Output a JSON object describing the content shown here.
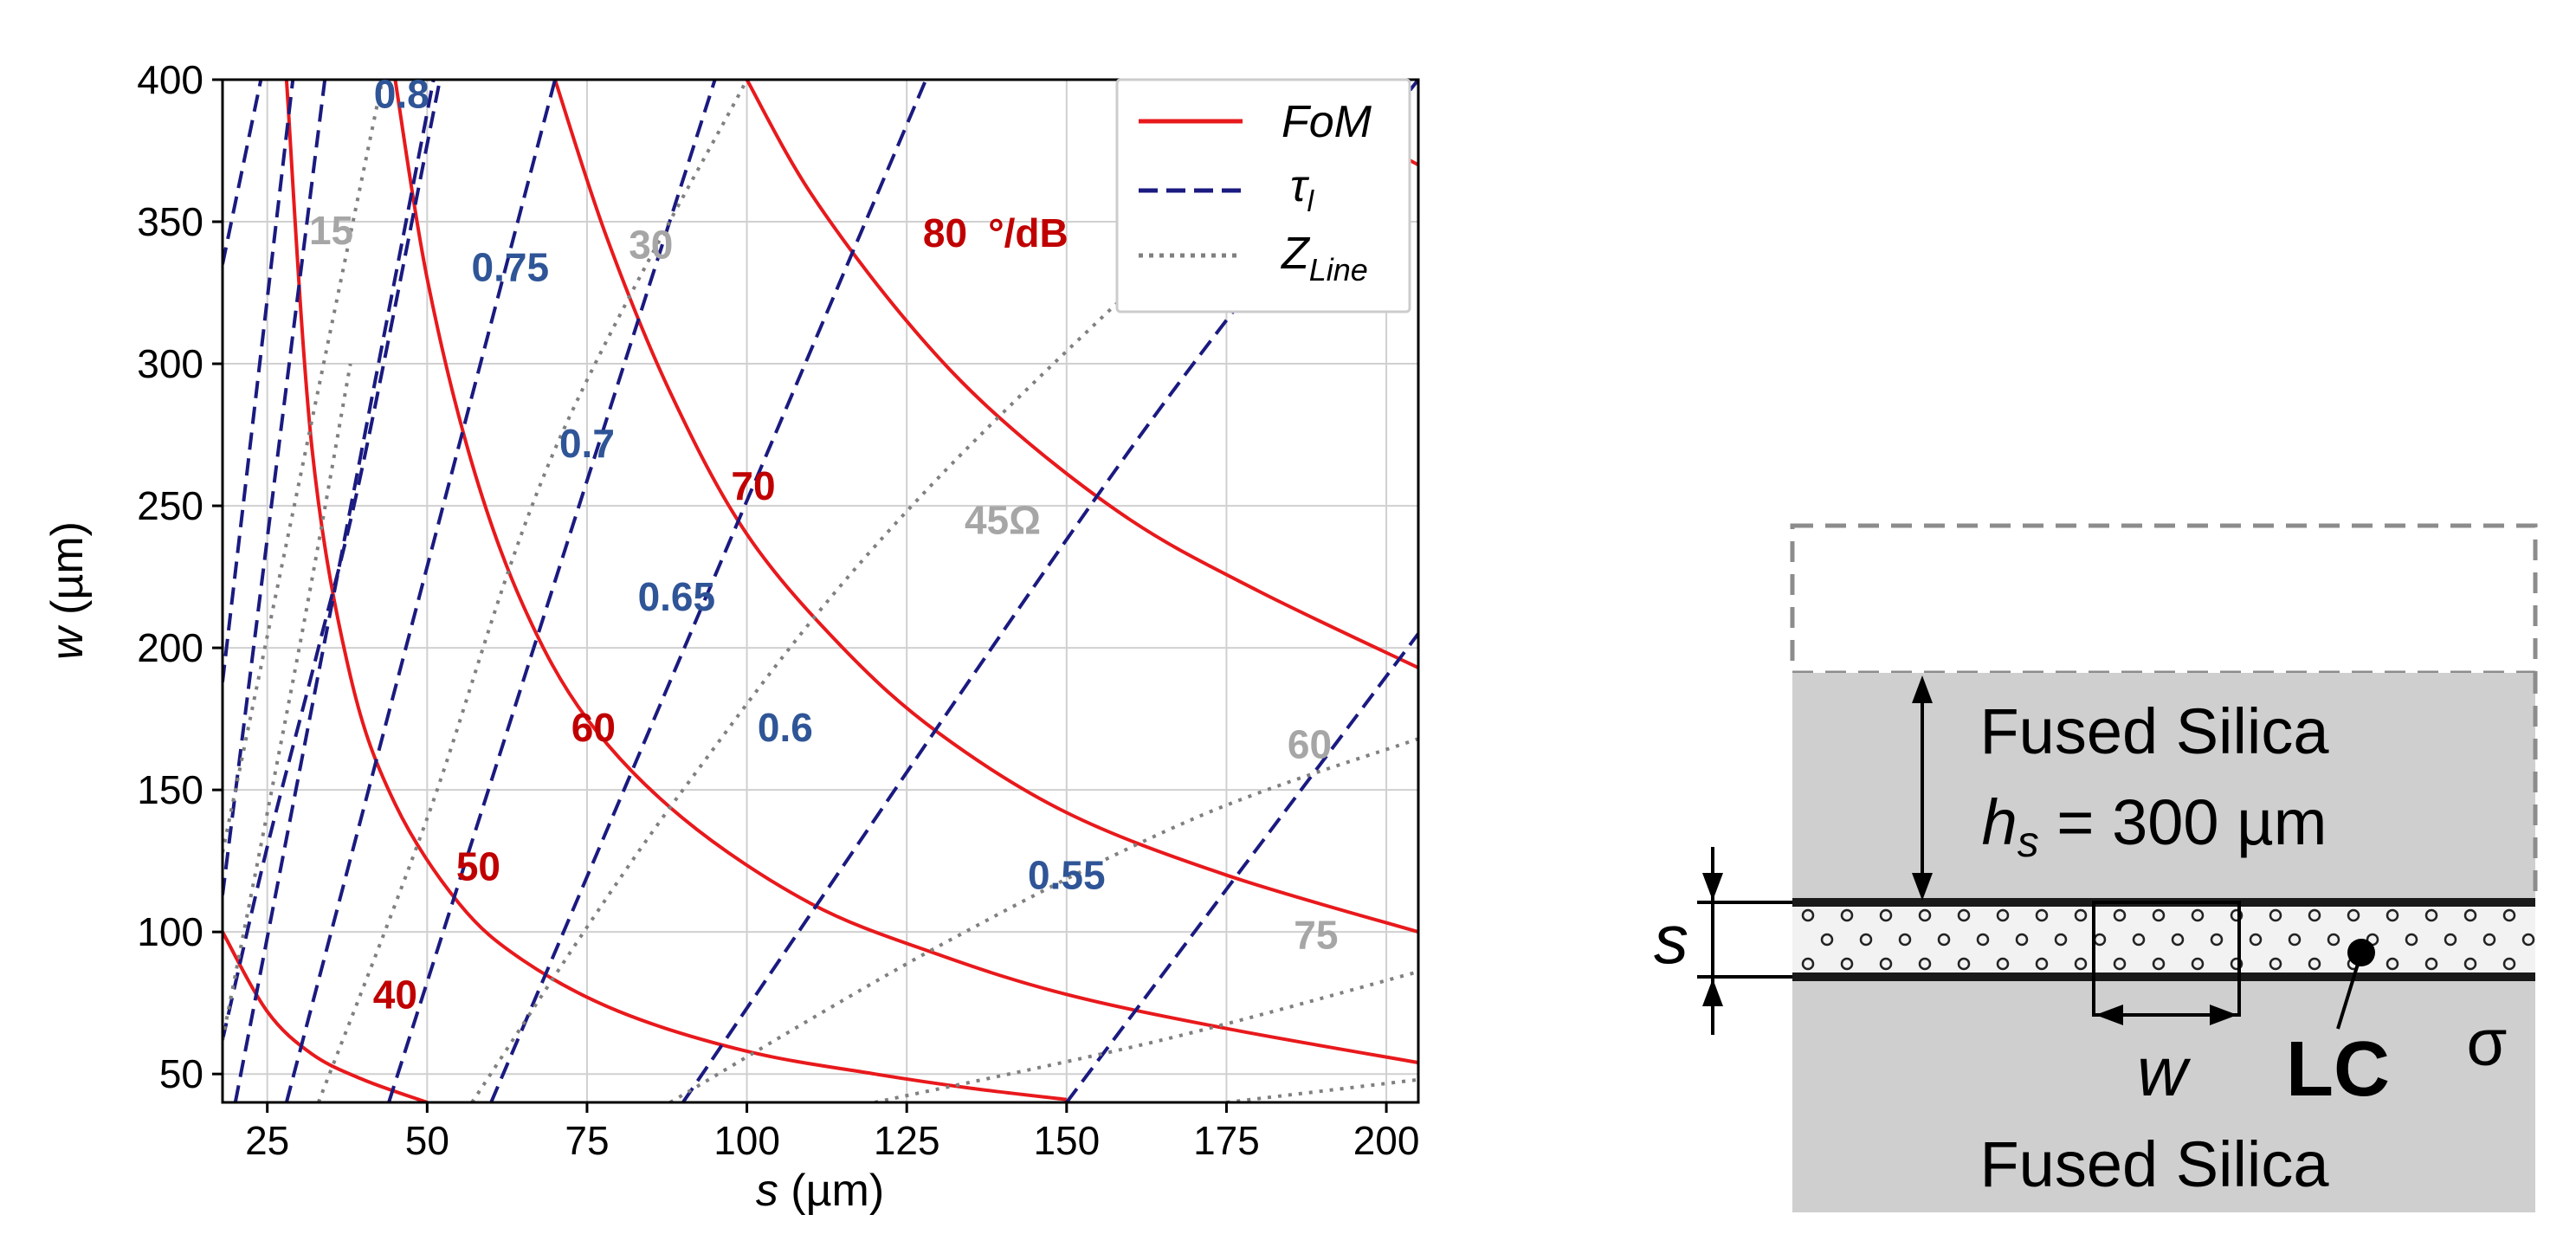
{
  "chart_data": {
    "type": "line",
    "xlabel_var": "s",
    "xlabel_unit": " (µm)",
    "ylabel_var": "w",
    "ylabel_unit": " (µm)",
    "xlim": [
      18,
      205
    ],
    "ylim": [
      40,
      400
    ],
    "xticks": [
      25,
      50,
      75,
      100,
      125,
      150,
      175,
      200
    ],
    "yticks": [
      50,
      100,
      150,
      200,
      250,
      300,
      350,
      400
    ],
    "grid": true,
    "legend_position": "top-right",
    "legend": [
      {
        "label": "FoM",
        "style": "solid",
        "color": "#e8191c"
      },
      {
        "label": "τ",
        "sub": "l",
        "style": "dashed",
        "color": "#1a1a80"
      },
      {
        "label": "Z",
        "sub": "Line",
        "style": "dotted",
        "color": "#808080"
      }
    ],
    "series": [
      {
        "group": "FoM",
        "value": 40,
        "points": [
          [
            18,
            100
          ],
          [
            25,
            72
          ],
          [
            32,
            57
          ],
          [
            40,
            48
          ],
          [
            50,
            40
          ]
        ]
      },
      {
        "group": "FoM",
        "value": 50,
        "points": [
          [
            28,
            400
          ],
          [
            32,
            270
          ],
          [
            38,
            190
          ],
          [
            45,
            145
          ],
          [
            55,
            110
          ],
          [
            65,
            90
          ],
          [
            80,
            72
          ],
          [
            100,
            58
          ],
          [
            120,
            50
          ],
          [
            135,
            45
          ],
          [
            150,
            41
          ]
        ]
      },
      {
        "group": "FoM",
        "value": 60,
        "points": [
          [
            45,
            400
          ],
          [
            50,
            330
          ],
          [
            57,
            265
          ],
          [
            65,
            215
          ],
          [
            75,
            175
          ],
          [
            90,
            140
          ],
          [
            110,
            110
          ],
          [
            130,
            92
          ],
          [
            150,
            78
          ],
          [
            175,
            66
          ],
          [
            205,
            54
          ]
        ]
      },
      {
        "group": "FoM",
        "value": 70,
        "points": [
          [
            70,
            400
          ],
          [
            78,
            345
          ],
          [
            88,
            290
          ],
          [
            100,
            240
          ],
          [
            115,
            200
          ],
          [
            130,
            170
          ],
          [
            150,
            142
          ],
          [
            175,
            120
          ],
          [
            205,
            100
          ]
        ]
      },
      {
        "group": "FoM",
        "value": 80,
        "points": [
          [
            100,
            400
          ],
          [
            110,
            360
          ],
          [
            125,
            315
          ],
          [
            140,
            280
          ],
          [
            160,
            245
          ],
          [
            180,
            220
          ],
          [
            205,
            193
          ]
        ]
      },
      {
        "group": "FoM",
        "value": null,
        "points": [
          [
            180,
            400
          ],
          [
            205,
            370
          ]
        ]
      },
      {
        "group": "tau",
        "value": 0.8,
        "points": [
          [
            18,
            335
          ],
          [
            24,
            400
          ]
        ]
      },
      {
        "group": "tau",
        "value": null,
        "points": [
          [
            18,
            188
          ],
          [
            29,
            400
          ]
        ]
      },
      {
        "group": "tau",
        "value": null,
        "points": [
          [
            18,
            113
          ],
          [
            34,
            400
          ]
        ]
      },
      {
        "group": "tau",
        "value": null,
        "points": [
          [
            18,
            62
          ],
          [
            25,
            130
          ],
          [
            33,
            200
          ],
          [
            40,
            265
          ],
          [
            52,
            400
          ]
        ]
      },
      {
        "group": "tau",
        "value": 0.75,
        "points": [
          [
            20,
            40
          ],
          [
            51,
            400
          ]
        ]
      },
      {
        "group": "tau",
        "value": 0.7,
        "points": [
          [
            28,
            40
          ],
          [
            70,
            400
          ]
        ]
      },
      {
        "group": "tau",
        "value": 0.65,
        "points": [
          [
            44,
            40
          ],
          [
            95,
            400
          ]
        ]
      },
      {
        "group": "tau",
        "value": 0.6,
        "points": [
          [
            60,
            40
          ],
          [
            128,
            400
          ]
        ]
      },
      {
        "group": "tau",
        "value": 0.55,
        "points": [
          [
            90,
            40
          ],
          [
            160,
            270
          ],
          [
            205,
            400
          ]
        ]
      },
      {
        "group": "tau",
        "value": null,
        "points": [
          [
            150,
            40
          ],
          [
            205,
            205
          ]
        ]
      },
      {
        "group": "Z",
        "value": 15,
        "points": [
          [
            18,
            128
          ],
          [
            43,
            400
          ]
        ]
      },
      {
        "group": "Z",
        "value": null,
        "points": [
          [
            18,
            62
          ],
          [
            30,
            200
          ],
          [
            38,
            300
          ]
        ]
      },
      {
        "group": "Z",
        "value": 30,
        "points": [
          [
            33,
            40
          ],
          [
            50,
            140
          ],
          [
            70,
            270
          ],
          [
            100,
            400
          ]
        ]
      },
      {
        "group": "Z",
        "value": 45,
        "points": [
          [
            57,
            40
          ],
          [
            90,
            150
          ],
          [
            130,
            260
          ],
          [
            205,
            420
          ]
        ]
      },
      {
        "group": "Z",
        "value": 60,
        "points": [
          [
            88,
            40
          ],
          [
            130,
            95
          ],
          [
            170,
            140
          ],
          [
            205,
            168
          ]
        ]
      },
      {
        "group": "Z",
        "value": 75,
        "points": [
          [
            120,
            40
          ],
          [
            165,
            62
          ],
          [
            205,
            86
          ]
        ]
      },
      {
        "group": "Z",
        "value": null,
        "points": [
          [
            175,
            40
          ],
          [
            205,
            48
          ]
        ]
      }
    ],
    "contour_labels": [
      {
        "text": "0.8",
        "x": 46,
        "y": 395,
        "group": "tau"
      },
      {
        "text": "0.75",
        "x": 63,
        "y": 334,
        "group": "tau"
      },
      {
        "text": "0.7",
        "x": 75,
        "y": 272,
        "group": "tau"
      },
      {
        "text": "0.65",
        "x": 89,
        "y": 218,
        "group": "tau"
      },
      {
        "text": "0.6",
        "x": 106,
        "y": 172,
        "group": "tau"
      },
      {
        "text": "0.55",
        "x": 150,
        "y": 120,
        "group": "tau"
      },
      {
        "text": "40",
        "x": 45,
        "y": 78,
        "group": "fom"
      },
      {
        "text": "50",
        "x": 58,
        "y": 123,
        "group": "fom"
      },
      {
        "text": "60",
        "x": 76,
        "y": 172,
        "group": "fom"
      },
      {
        "text": "70",
        "x": 101,
        "y": 257,
        "group": "fom"
      },
      {
        "text": "80",
        "x": 131,
        "y": 346,
        "group": "fom"
      },
      {
        "text": "°/dB",
        "x": 144,
        "y": 346,
        "group": "fom-unit"
      },
      {
        "text": "15",
        "x": 35,
        "y": 347,
        "group": "z"
      },
      {
        "text": "30",
        "x": 85,
        "y": 342,
        "group": "z"
      },
      {
        "text": "45Ω",
        "x": 140,
        "y": 245,
        "group": "z"
      },
      {
        "text": "60",
        "x": 188,
        "y": 166,
        "group": "z"
      },
      {
        "text": "75",
        "x": 189,
        "y": 99,
        "group": "z"
      }
    ]
  },
  "colors": {
    "fom": "#e8191c",
    "fom_label": "#c00000",
    "tau": "#1a1a80",
    "tau_label": "#2f5597",
    "z": "#808080",
    "z_label": "#a6a6a6",
    "grid": "#d0d0d0",
    "silica": "#cfcfcf",
    "lc": "#f2f2f2"
  },
  "schematic": {
    "top_layer_label": "Fused Silica",
    "thickness_var": "h",
    "thickness_sub": "s",
    "thickness_value": " = 300 µm",
    "gap_label": "s",
    "width_label": "w",
    "lc_label": "LC",
    "conductivity_label": "σ",
    "bottom_layer_label": "Fused Silica"
  }
}
